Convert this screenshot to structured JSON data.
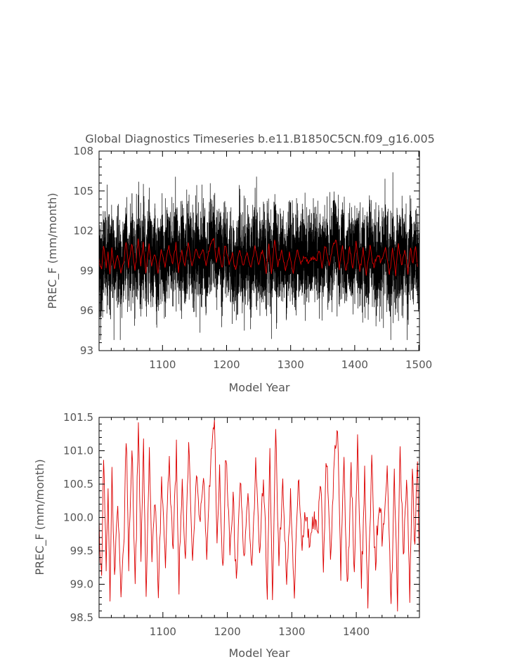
{
  "chart_data": [
    {
      "type": "line",
      "title": "Global Diagnostics Timeseries b.e11.B1850C5CN.f09_g16.005",
      "xlabel": "Model Year",
      "ylabel": "PREC_F (mm/month)",
      "xlim": [
        1001,
        1501
      ],
      "ylim": [
        93,
        108
      ],
      "xticks": [
        1100,
        1200,
        1300,
        1400,
        1500
      ],
      "yticks": [
        93,
        96,
        99,
        102,
        105,
        108
      ],
      "series": [
        {
          "kind": "monthly",
          "color": "#000000",
          "mean": 99.9,
          "envelope_min": 93.8,
          "envelope_max": 106.7,
          "typical_range": [
            96.5,
            103.2
          ],
          "x_start": 1001,
          "x_end": 1501
        },
        {
          "kind": "annual",
          "color": "#dd0000",
          "ref": "annual_values"
        }
      ]
    },
    {
      "type": "line",
      "title": "",
      "xlabel": "Model Year",
      "ylabel": "PREC_F (mm/month)",
      "xlim": [
        1001,
        1498
      ],
      "ylim": [
        98.5,
        101.5
      ],
      "xticks": [
        1100,
        1200,
        1300,
        1400
      ],
      "yticks": [
        98.5,
        99.0,
        99.5,
        100.0,
        100.5,
        101.0,
        101.5
      ],
      "ytick_labels": [
        "98.5",
        "99.0",
        "99.5",
        "100.0",
        "100.5",
        "101.0",
        "101.5"
      ],
      "series": [
        {
          "kind": "annual",
          "color": "#dd0000",
          "x_start": 1001,
          "values_by_year": {
            "1001": 99.6,
            "1005": 99.2,
            "1008": 100.9,
            "1012": 99.4,
            "1015": 100.4,
            "1018": 98.8,
            "1021": 100.7,
            "1025": 99.1,
            "1030": 100.3,
            "1035": 98.9,
            "1040": 99.8,
            "1043": 101.3,
            "1047": 99.3,
            "1052": 101.0,
            "1057": 99.0,
            "1062": 101.2,
            "1066": 99.5,
            "1070": 101.0,
            "1074": 98.8,
            "1079": 101.1,
            "1083": 99.4,
            "1088": 100.3,
            "1093": 98.9,
            "1098": 100.6,
            "1104": 99.3,
            "1110": 100.8,
            "1116": 99.5,
            "1121": 101.0,
            "1125": 98.9,
            "1130": 100.5,
            "1135": 99.4,
            "1140": 101.1,
            "1146": 99.3,
            "1152": 100.7,
            "1158": 99.8,
            "1163": 100.6,
            "1168": 99.4,
            "1174": 100.9,
            "1180": 101.5,
            "1184": 99.6,
            "1188": 100.6,
            "1193": 99.1,
            "1198": 101.0,
            "1204": 99.5,
            "1209": 100.3,
            "1214": 98.9,
            "1220": 100.6,
            "1226": 99.3,
            "1232": 100.4,
            "1238": 99.1,
            "1244": 100.9,
            "1250": 99.5,
            "1256": 100.6,
            "1262": 98.9,
            "1266": 101.0,
            "1270": 98.7,
            "1275": 101.4,
            "1280": 99.3,
            "1286": 100.5,
            "1292": 99.0,
            "1298": 100.4,
            "1304": 98.9,
            "1310": 100.6,
            "1316": 99.5,
            "1322": 100.1,
            "1328": 99.6,
            "1334": 100.0,
            "1340": 99.8,
            "1345": 100.6,
            "1349": 99.2,
            "1354": 101.0,
            "1360": 99.4,
            "1366": 100.8,
            "1371": 101.4,
            "1376": 99.3,
            "1381": 100.9,
            "1386": 98.9,
            "1392": 100.7,
            "1397": 99.2,
            "1402": 101.0,
            "1408": 99.0,
            "1413": 100.6,
            "1418": 98.8,
            "1424": 100.9,
            "1430": 99.4,
            "1436": 100.2,
            "1442": 99.6,
            "1448": 100.9,
            "1454": 98.7,
            "1459": 100.6,
            "1464": 98.8,
            "1468": 101.1,
            "1473": 99.4,
            "1478": 100.6,
            "1483": 98.9,
            "1487": 100.7,
            "1491": 99.6,
            "1495": 100.8,
            "1498": 99.3
          }
        }
      ]
    }
  ]
}
